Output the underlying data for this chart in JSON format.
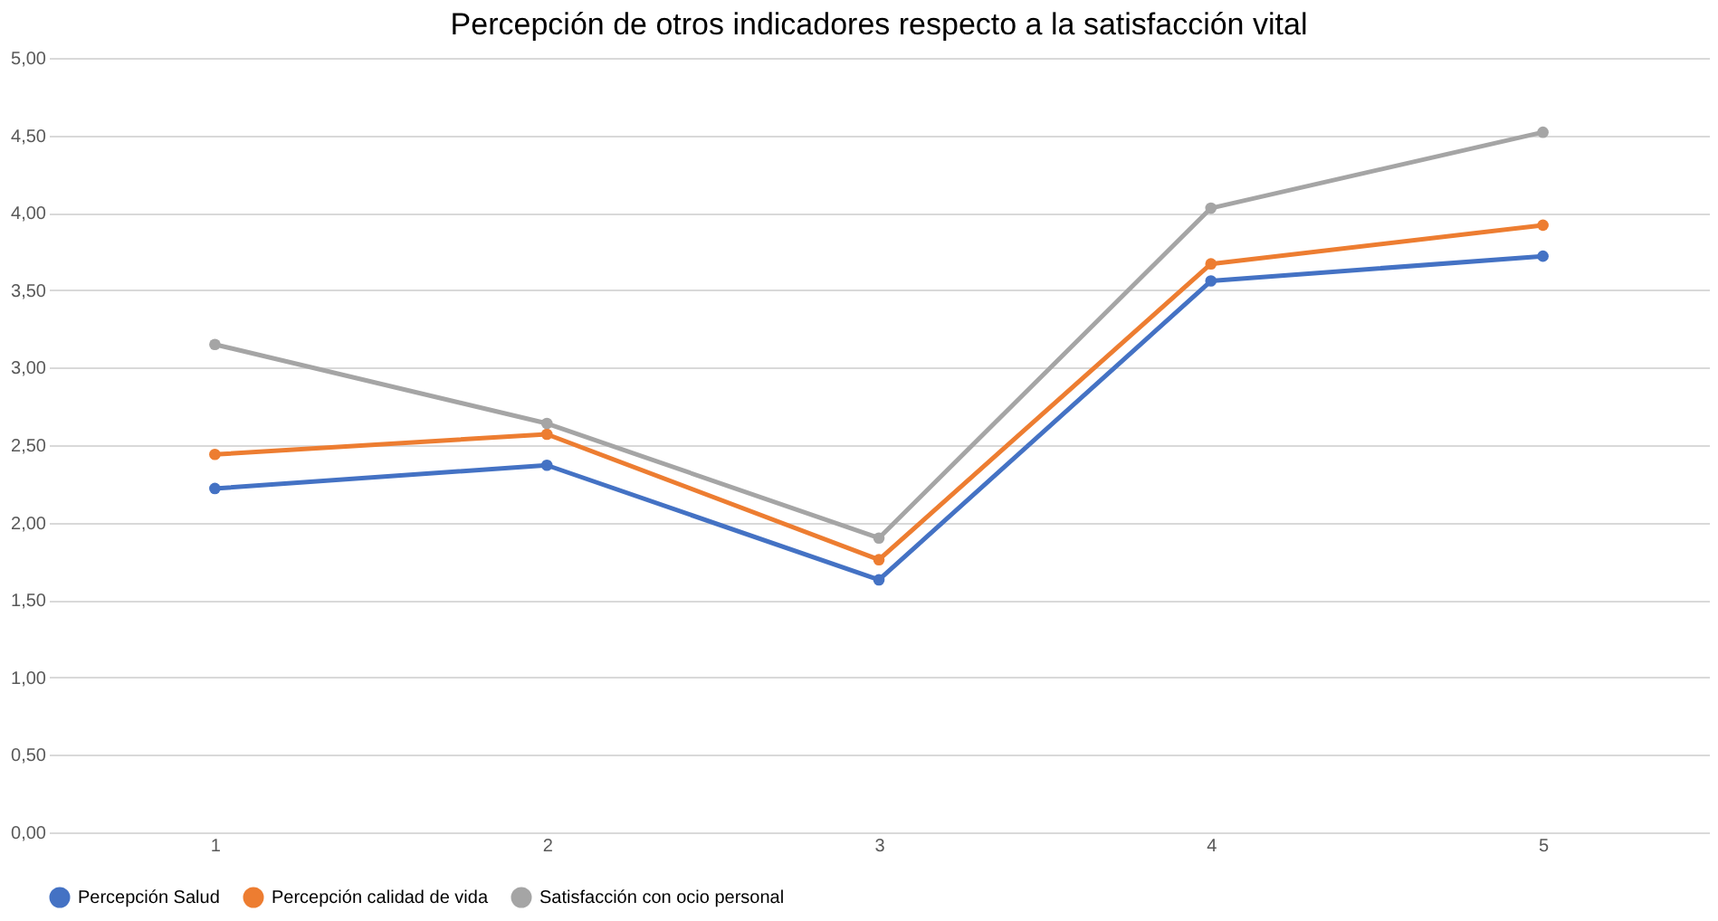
{
  "chart_data": {
    "type": "line",
    "title": "Percepción de otros indicadores respecto a la satisfacción vital",
    "categories": [
      "1",
      "2",
      "3",
      "4",
      "5"
    ],
    "series": [
      {
        "name": "Percepción Salud",
        "color": "#4472c4",
        "values": [
          2.22,
          2.37,
          1.63,
          3.56,
          3.72
        ]
      },
      {
        "name": "Percepción calidad de vida",
        "color": "#ed7d31",
        "values": [
          2.44,
          2.57,
          1.76,
          3.67,
          3.92
        ]
      },
      {
        "name": "Satisfacción con ocio personal",
        "color": "#a5a5a5",
        "values": [
          3.15,
          2.64,
          1.9,
          4.03,
          4.52
        ]
      }
    ],
    "ylim": [
      0,
      5
    ],
    "yticks": [
      {
        "value": 0,
        "label": "0,00"
      },
      {
        "value": 0.5,
        "label": "0,50"
      },
      {
        "value": 1,
        "label": "1,00"
      },
      {
        "value": 1.5,
        "label": "1,50"
      },
      {
        "value": 2,
        "label": "2,00"
      },
      {
        "value": 2.5,
        "label": "2,50"
      },
      {
        "value": 3,
        "label": "3,00"
      },
      {
        "value": 3.5,
        "label": "3,50"
      },
      {
        "value": 4,
        "label": "4,00"
      },
      {
        "value": 4.5,
        "label": "4,50"
      },
      {
        "value": 5,
        "label": "5,00"
      }
    ],
    "grid": "y",
    "legend": "bottom",
    "marker": "circle",
    "line_style": "solid"
  }
}
